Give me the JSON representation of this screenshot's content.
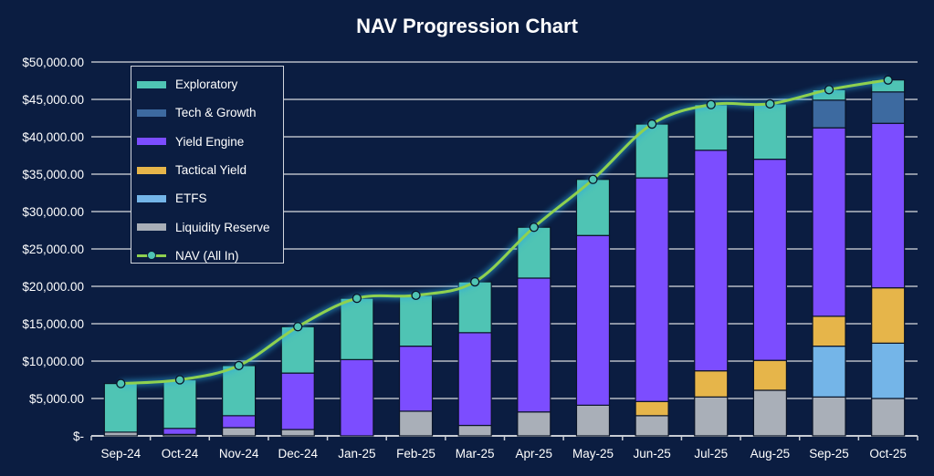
{
  "chart_data": {
    "type": "bar",
    "title": "NAV Progression Chart",
    "xlabel": "",
    "ylabel": "",
    "ylim": [
      0,
      50000
    ],
    "yticks": [
      "$-",
      "$5,000.00",
      "$10,000.00",
      "$15,000.00",
      "$20,000.00",
      "$25,000.00",
      "$30,000.00",
      "$35,000.00",
      "$40,000.00",
      "$45,000.00",
      "$50,000.00"
    ],
    "grid": true,
    "stacked": true,
    "legend_position": "top-left",
    "categories": [
      "Sep-24",
      "Oct-24",
      "Nov-24",
      "Dec-24",
      "Jan-25",
      "Feb-25",
      "Mar-25",
      "Apr-25",
      "May-25",
      "Jun-25",
      "Jul-25",
      "Aug-25",
      "Sep-25",
      "Oct-25"
    ],
    "series": [
      {
        "name": "Liquidity Reserve",
        "color": "#a9afb8",
        "values": [
          500,
          200,
          1100,
          850,
          0,
          3300,
          1400,
          3200,
          4100,
          2700,
          5200,
          6100,
          5200,
          5000
        ]
      },
      {
        "name": "ETFS",
        "color": "#74b5e8",
        "values": [
          0,
          0,
          0,
          0,
          0,
          0,
          0,
          0,
          0,
          0,
          0,
          0,
          6800,
          7400
        ]
      },
      {
        "name": "Tactical Yield",
        "color": "#e6b54a",
        "values": [
          0,
          0,
          0,
          0,
          0,
          0,
          0,
          0,
          0,
          1900,
          3500,
          4000,
          4000,
          7400
        ]
      },
      {
        "name": "Yield Engine",
        "color": "#7c4dff",
        "values": [
          0,
          800,
          1600,
          7550,
          10200,
          8700,
          12400,
          17900,
          22700,
          29900,
          29500,
          26900,
          25200,
          22000
        ]
      },
      {
        "name": "Tech & Growth",
        "color": "#3d6aa0",
        "values": [
          0,
          0,
          0,
          0,
          0,
          0,
          0,
          0,
          0,
          0,
          0,
          0,
          3700,
          4200
        ]
      },
      {
        "name": "Exploratory",
        "color": "#4fc4b4",
        "values": [
          6500,
          6500,
          6700,
          6200,
          8200,
          6800,
          6800,
          6800,
          7500,
          7200,
          6100,
          7400,
          1400,
          1600
        ]
      }
    ],
    "line": {
      "name": "NAV (All In)",
      "type": "line",
      "color": "#8fd14f",
      "marker_color": "#4fc4b4",
      "values": [
        7000,
        7500,
        9400,
        14600,
        18400,
        18800,
        20600,
        27900,
        34300,
        41700,
        44300,
        44400,
        46300,
        47600
      ]
    },
    "legend_order": [
      "Exploratory",
      "Tech & Growth",
      "Yield Engine",
      "Tactical Yield",
      "ETFS",
      "Liquidity Reserve",
      "NAV (All In)"
    ]
  }
}
